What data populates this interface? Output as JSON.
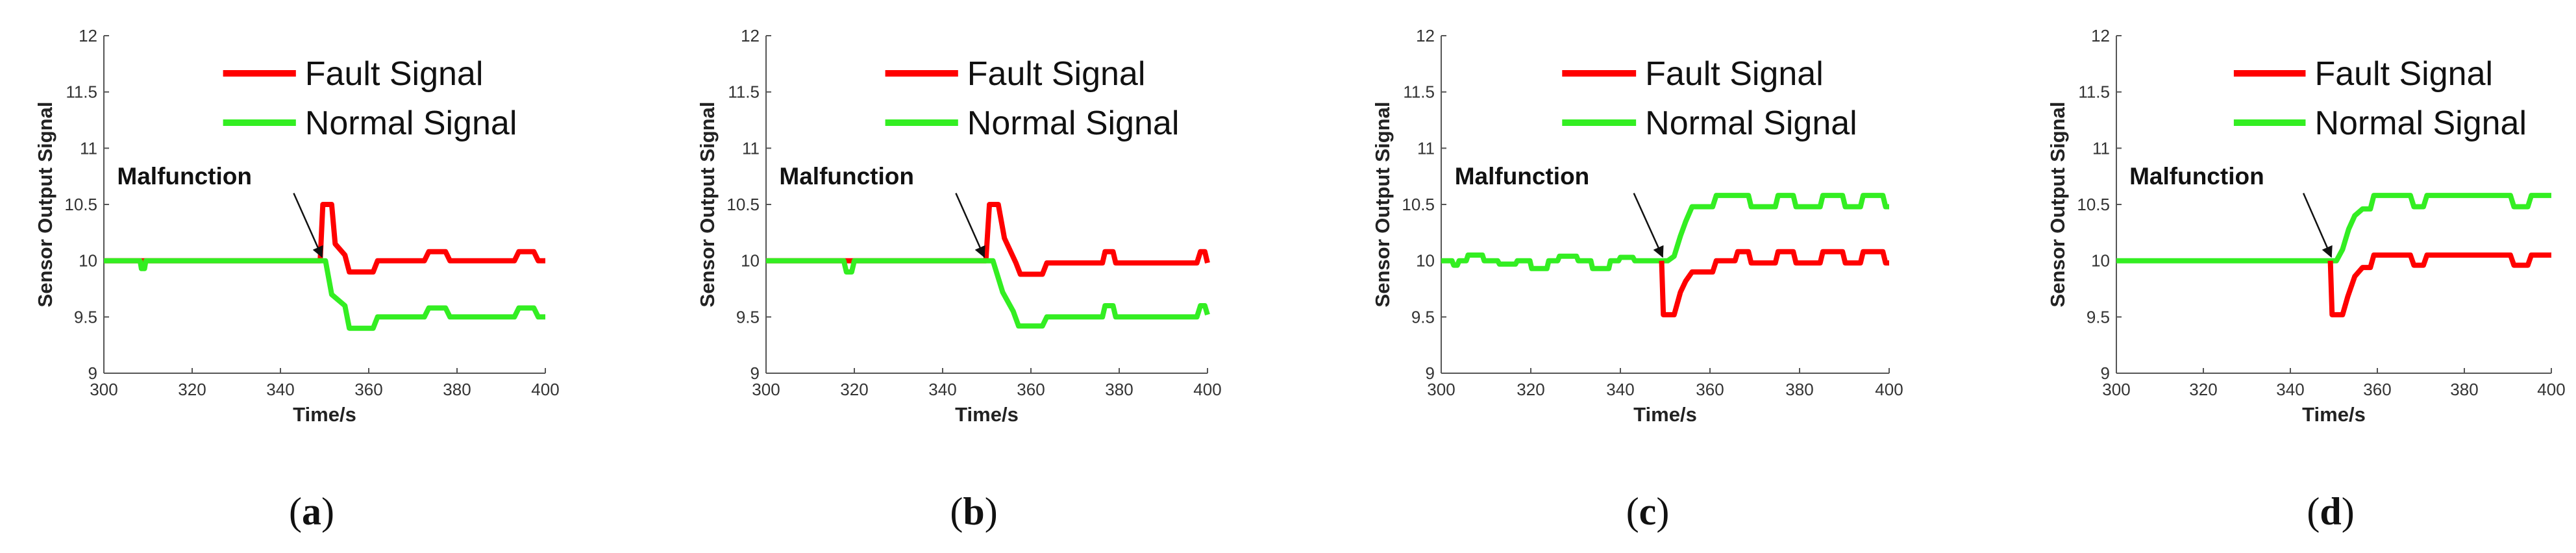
{
  "figure": {
    "colors": {
      "fault": "#ff0000",
      "normal": "#33ee22",
      "axis": "#555555",
      "text": "#111111"
    }
  },
  "chart_data": [
    {
      "type": "line",
      "caption": "a",
      "xlabel": "Time/s",
      "ylabel": "Sensor Output Signal",
      "xlim": [
        300,
        400
      ],
      "ylim": [
        9,
        12
      ],
      "xticks": [
        "300",
        "320",
        "340",
        "360",
        "380",
        "400"
      ],
      "yticks": [
        "9",
        "9.5",
        "10",
        "10.5",
        "11",
        "11.5",
        "12"
      ],
      "grid": false,
      "legend_position": "top-right",
      "annotation": {
        "text": "Malfunction",
        "x": 350,
        "y": 10
      },
      "series": [
        {
          "name": "Fault Signal",
          "color": "#ff0000",
          "points": [
            [
              300,
              10
            ],
            [
              349,
              10
            ],
            [
              349.6,
              10.5
            ],
            [
              351.6,
              10.5
            ],
            [
              352.4,
              10.15
            ],
            [
              354.6,
              10.05
            ],
            [
              355.6,
              9.9
            ],
            [
              361,
              9.9
            ],
            [
              362,
              10
            ],
            [
              372.6,
              10
            ],
            [
              373.6,
              10.08
            ],
            [
              377.4,
              10.08
            ],
            [
              378.4,
              10
            ],
            [
              393,
              10
            ],
            [
              394,
              10.08
            ],
            [
              397.4,
              10.08
            ],
            [
              398.4,
              10
            ],
            [
              400,
              10
            ]
          ]
        },
        {
          "name": "Normal Signal",
          "color": "#33ee22",
          "points": [
            [
              300,
              10
            ],
            [
              308.2,
              10
            ],
            [
              308.5,
              9.93
            ],
            [
              309.2,
              9.93
            ],
            [
              309.5,
              10
            ],
            [
              350.2,
              10
            ],
            [
              351.6,
              9.7
            ],
            [
              354.6,
              9.6
            ],
            [
              355.6,
              9.4
            ],
            [
              361,
              9.4
            ],
            [
              362,
              9.5
            ],
            [
              372.6,
              9.5
            ],
            [
              373.6,
              9.58
            ],
            [
              377.4,
              9.58
            ],
            [
              378.4,
              9.5
            ],
            [
              393,
              9.5
            ],
            [
              394,
              9.58
            ],
            [
              397.4,
              9.58
            ],
            [
              398.4,
              9.5
            ],
            [
              400,
              9.5
            ]
          ]
        }
      ]
    },
    {
      "type": "line",
      "caption": "b",
      "xlabel": "Time/s",
      "ylabel": "Sensor Output Signal",
      "xlim": [
        300,
        400
      ],
      "ylim": [
        9,
        12
      ],
      "xticks": [
        "300",
        "320",
        "340",
        "360",
        "380",
        "400"
      ],
      "yticks": [
        "9",
        "9.5",
        "10",
        "10.5",
        "11",
        "11.5",
        "12"
      ],
      "grid": false,
      "legend_position": "top-right",
      "annotation": {
        "text": "Malfunction",
        "x": 350,
        "y": 10
      },
      "series": [
        {
          "name": "Fault Signal",
          "color": "#ff0000",
          "points": [
            [
              300,
              10
            ],
            [
              349.8,
              10
            ],
            [
              350.6,
              10.5
            ],
            [
              352.6,
              10.5
            ],
            [
              354,
              10.2
            ],
            [
              356.6,
              9.98
            ],
            [
              357.6,
              9.88
            ],
            [
              362.6,
              9.88
            ],
            [
              363.6,
              9.98
            ],
            [
              376.2,
              9.98
            ],
            [
              376.8,
              10.08
            ],
            [
              378.6,
              10.08
            ],
            [
              379.2,
              9.98
            ],
            [
              397.6,
              9.98
            ],
            [
              398.4,
              10.08
            ],
            [
              399.4,
              10.08
            ],
            [
              400,
              9.98
            ]
          ]
        },
        {
          "name": "Normal Signal",
          "color": "#33ee22",
          "points": [
            [
              300,
              10
            ],
            [
              317.6,
              10
            ],
            [
              318.2,
              9.9
            ],
            [
              319.4,
              9.9
            ],
            [
              320,
              10
            ],
            [
              351.4,
              10
            ],
            [
              353.6,
              9.72
            ],
            [
              356,
              9.55
            ],
            [
              357.2,
              9.42
            ],
            [
              362.6,
              9.42
            ],
            [
              363.6,
              9.5
            ],
            [
              376.2,
              9.5
            ],
            [
              376.8,
              9.6
            ],
            [
              378.6,
              9.6
            ],
            [
              379.2,
              9.5
            ],
            [
              397.6,
              9.5
            ],
            [
              398.4,
              9.6
            ],
            [
              399.4,
              9.6
            ],
            [
              400,
              9.52
            ]
          ]
        }
      ]
    },
    {
      "type": "line",
      "caption": "c",
      "xlabel": "Time/s",
      "ylabel": "Sensor Output Signal",
      "xlim": [
        300,
        400
      ],
      "ylim": [
        9,
        12
      ],
      "xticks": [
        "300",
        "320",
        "340",
        "360",
        "380",
        "400"
      ],
      "yticks": [
        "9",
        "9.5",
        "10",
        "10.5",
        "11",
        "11.5",
        "12"
      ],
      "grid": false,
      "legend_position": "top-right",
      "annotation": {
        "text": "Malfunction",
        "x": 350,
        "y": 10
      },
      "series": [
        {
          "name": "Normal Signal",
          "color": "#33ee22",
          "points": [
            [
              300,
              10
            ],
            [
              302.4,
              10
            ],
            [
              302.8,
              9.96
            ],
            [
              303.6,
              9.96
            ],
            [
              304,
              10
            ],
            [
              305.6,
              10
            ],
            [
              306,
              10.05
            ],
            [
              309.2,
              10.05
            ],
            [
              309.6,
              10
            ],
            [
              312.6,
              10
            ],
            [
              313,
              9.97
            ],
            [
              316.6,
              9.97
            ],
            [
              317,
              10
            ],
            [
              319.8,
              10
            ],
            [
              320.2,
              9.93
            ],
            [
              323.6,
              9.93
            ],
            [
              324,
              10
            ],
            [
              326,
              10
            ],
            [
              326.4,
              10.04
            ],
            [
              330.2,
              10.04
            ],
            [
              330.6,
              10
            ],
            [
              333.4,
              10
            ],
            [
              333.8,
              9.93
            ],
            [
              337.4,
              9.93
            ],
            [
              337.8,
              10
            ],
            [
              339.6,
              10
            ],
            [
              340,
              10.03
            ],
            [
              342.8,
              10.03
            ],
            [
              343.2,
              10
            ],
            [
              350.6,
              10
            ],
            [
              352,
              10.04
            ],
            [
              353.4,
              10.22
            ],
            [
              354.6,
              10.35
            ],
            [
              356,
              10.48
            ],
            [
              360.6,
              10.48
            ],
            [
              361.4,
              10.58
            ],
            [
              368.6,
              10.58
            ],
            [
              369.2,
              10.48
            ],
            [
              374.6,
              10.48
            ],
            [
              375.2,
              10.58
            ],
            [
              378.6,
              10.58
            ],
            [
              379.2,
              10.48
            ],
            [
              384.6,
              10.48
            ],
            [
              385.2,
              10.58
            ],
            [
              389.6,
              10.58
            ],
            [
              390.2,
              10.48
            ],
            [
              393.6,
              10.48
            ],
            [
              394.2,
              10.58
            ],
            [
              398.6,
              10.58
            ],
            [
              399.2,
              10.48
            ],
            [
              400,
              10.48
            ]
          ]
        },
        {
          "name": "Fault Signal",
          "color": "#ff0000",
          "points": [
            [
              349.2,
              10
            ],
            [
              349.6,
              9.52
            ],
            [
              352,
              9.52
            ],
            [
              353.4,
              9.72
            ],
            [
              354.6,
              9.82
            ],
            [
              356,
              9.9
            ],
            [
              360.6,
              9.9
            ],
            [
              361.4,
              10
            ],
            [
              365.6,
              10
            ],
            [
              366.2,
              10.08
            ],
            [
              368.6,
              10.08
            ],
            [
              369.2,
              9.98
            ],
            [
              374.6,
              9.98
            ],
            [
              375.2,
              10.08
            ],
            [
              378.6,
              10.08
            ],
            [
              379.2,
              9.98
            ],
            [
              384.6,
              9.98
            ],
            [
              385.2,
              10.08
            ],
            [
              389.6,
              10.08
            ],
            [
              390.2,
              9.98
            ],
            [
              393.6,
              9.98
            ],
            [
              394.2,
              10.08
            ],
            [
              398.6,
              10.08
            ],
            [
              399.2,
              9.98
            ],
            [
              400,
              9.98
            ]
          ]
        }
      ]
    },
    {
      "type": "line",
      "caption": "d",
      "xlabel": "Time/s",
      "ylabel": "Sensor Output Signal",
      "xlim": [
        300,
        400
      ],
      "ylim": [
        9,
        12
      ],
      "xticks": [
        "300",
        "320",
        "340",
        "360",
        "380",
        "400"
      ],
      "yticks": [
        "9",
        "9.5",
        "10",
        "10.5",
        "11",
        "11.5",
        "12"
      ],
      "grid": false,
      "legend_position": "top-right",
      "annotation": {
        "text": "Malfunction",
        "x": 350,
        "y": 10
      },
      "series": [
        {
          "name": "Normal Signal",
          "color": "#33ee22",
          "points": [
            [
              300,
              10
            ],
            [
              350.6,
              10
            ],
            [
              352,
              10.1
            ],
            [
              353.4,
              10.28
            ],
            [
              354.8,
              10.4
            ],
            [
              356.6,
              10.46
            ],
            [
              358.4,
              10.46
            ],
            [
              359.2,
              10.58
            ],
            [
              367.6,
              10.58
            ],
            [
              368.4,
              10.48
            ],
            [
              370.6,
              10.48
            ],
            [
              371.4,
              10.58
            ],
            [
              390.6,
              10.58
            ],
            [
              391.4,
              10.48
            ],
            [
              394.6,
              10.48
            ],
            [
              395.4,
              10.58
            ],
            [
              400,
              10.58
            ]
          ]
        },
        {
          "name": "Fault Signal",
          "color": "#ff0000",
          "points": [
            [
              349.2,
              10
            ],
            [
              349.6,
              9.52
            ],
            [
              352,
              9.52
            ],
            [
              353.2,
              9.68
            ],
            [
              354.8,
              9.86
            ],
            [
              356.6,
              9.94
            ],
            [
              358.4,
              9.94
            ],
            [
              359.2,
              10.05
            ],
            [
              367.6,
              10.05
            ],
            [
              368.4,
              9.96
            ],
            [
              370.6,
              9.96
            ],
            [
              371.4,
              10.05
            ],
            [
              390.6,
              10.05
            ],
            [
              391.4,
              9.96
            ],
            [
              394.6,
              9.96
            ],
            [
              395.4,
              10.05
            ],
            [
              400,
              10.05
            ]
          ]
        }
      ]
    }
  ]
}
